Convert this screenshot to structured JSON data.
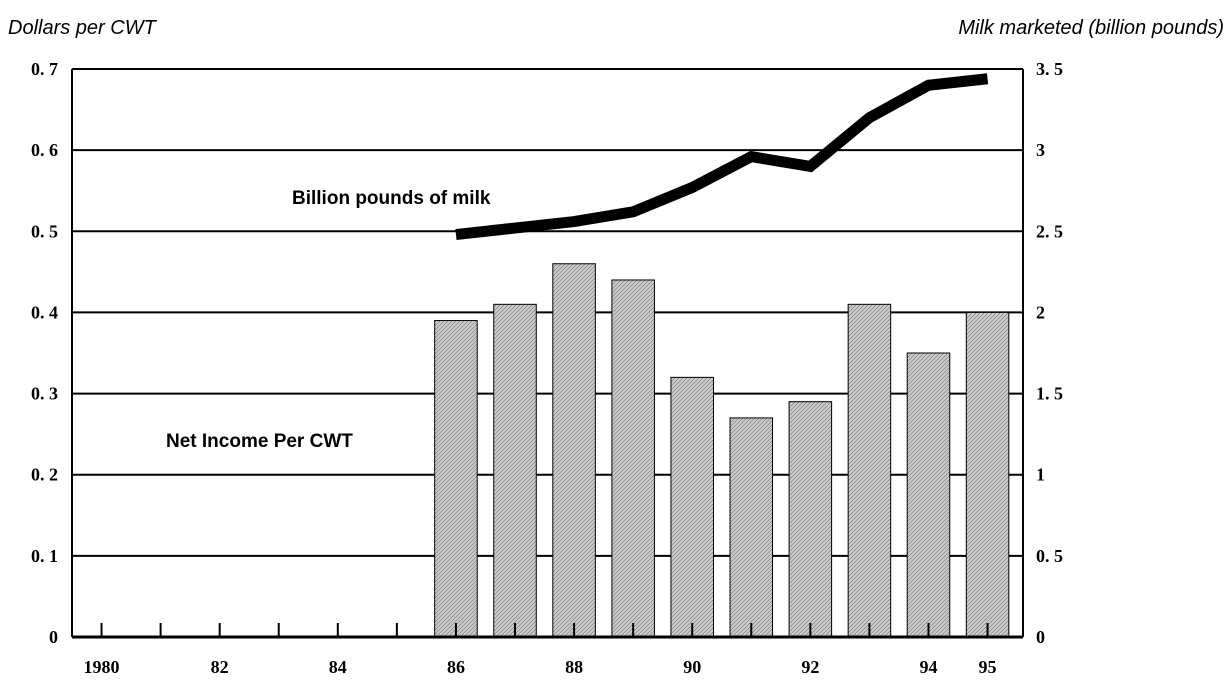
{
  "chart_data": {
    "type": "bar",
    "ylabel": "Dollars per CWT",
    "y2label": "Milk marketed (billion pounds)",
    "ylim": [
      0,
      0.7
    ],
    "y2lim": [
      0,
      3.5
    ],
    "yticks": [
      "0",
      "0. 1",
      "0. 2",
      "0. 3",
      "0. 4",
      "0. 5",
      "0. 6",
      "0. 7"
    ],
    "y2ticks": [
      "0",
      "0. 5",
      "1",
      "1. 5",
      "2",
      "2. 5",
      "3",
      "3. 5"
    ],
    "x": [
      1980,
      1981,
      1982,
      1983,
      1984,
      1985,
      1986,
      1987,
      1988,
      1989,
      1990,
      1991,
      1992,
      1993,
      1994,
      1995
    ],
    "xtick_labels": [
      "1980",
      "",
      "82",
      "",
      "84",
      "",
      "86",
      "",
      "88",
      "",
      "90",
      "",
      "92",
      "",
      "94",
      "95"
    ],
    "grid": true,
    "series": [
      {
        "name": "Net Income Per CWT",
        "type": "bar",
        "axis": "left",
        "x": [
          1986,
          1987,
          1988,
          1989,
          1990,
          1991,
          1992,
          1993,
          1994,
          1995
        ],
        "values": [
          0.39,
          0.41,
          0.46,
          0.44,
          0.32,
          0.27,
          0.29,
          0.41,
          0.35,
          0.4
        ]
      },
      {
        "name": "Billion pounds of milk",
        "type": "line",
        "axis": "right",
        "x": [
          1986,
          1987,
          1988,
          1989,
          1990,
          1991,
          1992,
          1993,
          1994,
          1995
        ],
        "values": [
          2.48,
          2.52,
          2.56,
          2.62,
          2.77,
          2.96,
          2.9,
          3.2,
          3.4,
          3.44
        ]
      }
    ],
    "colors": {
      "bar_fill": "#c8c8c8",
      "bar_stroke": "#000000",
      "line": "#000000",
      "grid": "#000000"
    }
  }
}
